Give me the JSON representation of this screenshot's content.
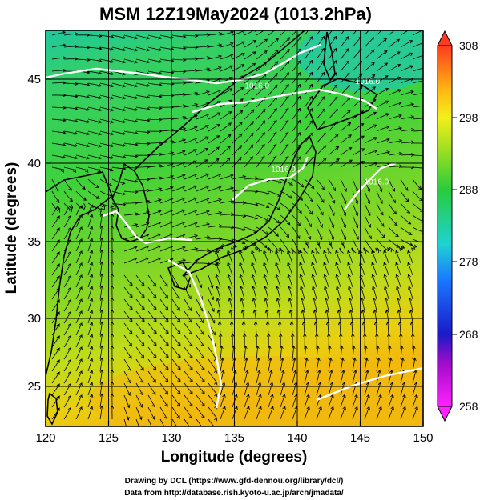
{
  "title": "MSM 12Z19May2024 (1013.2hPa)",
  "xlabel": "Longitude (degrees)",
  "ylabel": "Latitude  (degrees)",
  "xticks": [
    {
      "value": 120,
      "label": "120"
    },
    {
      "value": 125,
      "label": "125"
    },
    {
      "value": 130,
      "label": "130"
    },
    {
      "value": 135,
      "label": "135"
    },
    {
      "value": 140,
      "label": "140"
    },
    {
      "value": 145,
      "label": "145"
    },
    {
      "value": 150,
      "label": "150"
    }
  ],
  "yticks": [
    {
      "value": 25,
      "label": "25"
    },
    {
      "value": 30,
      "label": "30"
    },
    {
      "value": 35,
      "label": "35"
    },
    {
      "value": 40,
      "label": "40"
    },
    {
      "value": 45,
      "label": "45"
    }
  ],
  "xlim": [
    120,
    150
  ],
  "ylim": [
    22.4,
    47.6
  ],
  "colorbar": {
    "range": [
      258,
      308
    ],
    "ticks": [
      {
        "value": 258,
        "label": "258"
      },
      {
        "value": 268,
        "label": "268"
      },
      {
        "value": 278,
        "label": "278"
      },
      {
        "value": 288,
        "label": "288"
      },
      {
        "value": 298,
        "label": "298"
      },
      {
        "value": 308,
        "label": "308"
      }
    ]
  },
  "contour_labels": [
    {
      "text": "1016.0",
      "lon": 136.8,
      "lat": 43.9
    },
    {
      "text": "1016.0",
      "lon": 145.6,
      "lat": 44.2
    },
    {
      "text": "1016.0",
      "lon": 138.9,
      "lat": 38.6
    },
    {
      "text": "1016.0",
      "lon": 146.3,
      "lat": 37.8
    }
  ],
  "credits": {
    "line1": "Drawing by DCL (https://www.gfd-dennou.org/library/dcl/)",
    "line2": "Data from http://database.rish.kyoto-u.ac.jp/arch/jmadata/"
  }
}
